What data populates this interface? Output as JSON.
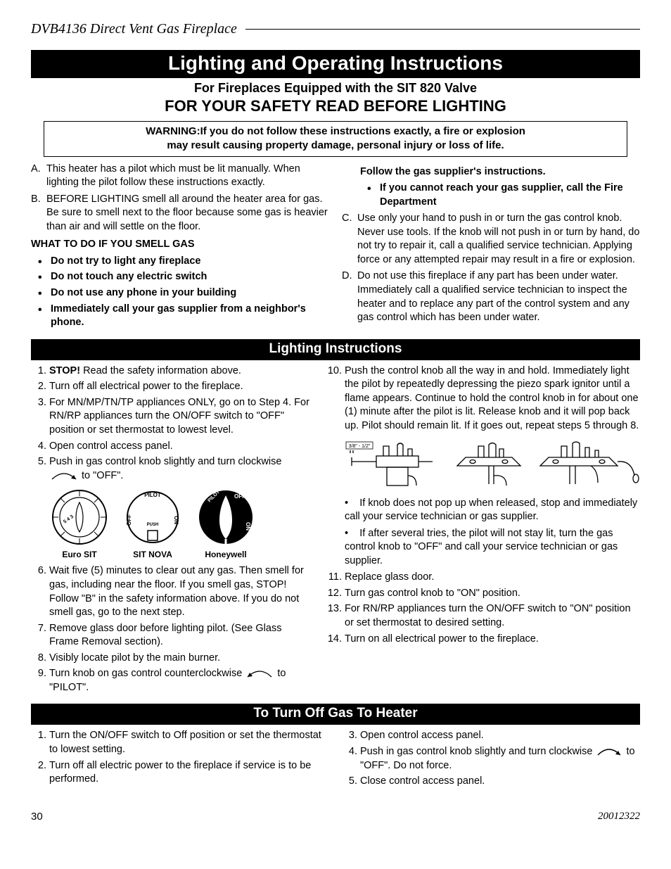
{
  "header": {
    "product_title": "DVB4136 Direct Vent Gas Fireplace"
  },
  "main": {
    "title": "Lighting and Operating Instructions",
    "subtitle1": "For Fireplaces Equipped with the SIT 820 Valve",
    "subtitle2": "FOR YOUR SAFETY READ BEFORE LIGHTING",
    "warning_line1": "WARNING:If you do not follow these instructions exactly, a fire or explosion",
    "warning_line2": "may result causing property damage, personal injury or loss of life."
  },
  "safety": {
    "left": {
      "items": [
        {
          "marker": "A.",
          "text": "This heater has a pilot which must be lit manually. When lighting the pilot follow these instructions exactly."
        },
        {
          "marker": "B.",
          "text": "BEFORE LIGHTING smell all around the heater area for gas. Be sure to smell next to the floor because some gas is heavier than air and will settle on the floor."
        }
      ],
      "smell_heading": "WHAT TO DO IF YOU SMELL GAS",
      "smell_bullets": [
        "Do not try to light any fireplace",
        "Do not touch any electric switch",
        "Do not use any phone in your building",
        "Immediately call your gas supplier from a neighbor's phone."
      ]
    },
    "right": {
      "indent_bold": "Follow the gas supplier's instructions.",
      "indent_bullet": "If you cannot reach your gas supplier, call the Fire Department",
      "items": [
        {
          "marker": "C.",
          "text": "Use only your hand to push in or turn the gas control knob. Never use tools. If the knob will not push in or turn by hand, do not try to repair it, call a qualified service technician. Applying force or any attempted repair may result in a fire or explosion."
        },
        {
          "marker": "D.",
          "text": "Do not use this fireplace if any part has been under water.  Immediately call a qualified service technician to inspect the heater and to replace any part of the control system and any gas control which has been under water."
        }
      ]
    }
  },
  "lighting": {
    "title": "Lighting Instructions",
    "left": [
      {
        "n": "1.",
        "html": "<span class=\"bold\">STOP!</span>  Read the safety information above."
      },
      {
        "n": "2.",
        "html": "Turn off all electrical power to the fireplace."
      },
      {
        "n": "3.",
        "html": "For MN/MP/TN/TP appliances ONLY, go on to Step 4. For RN/RP appliances turn the ON/OFF switch to \"OFF\" position or set thermostat to lowest level."
      },
      {
        "n": "4.",
        "html": "Open control access panel."
      },
      {
        "n": "5.",
        "html": "Push in gas control knob slightly and turn clockwise <svg class=\"arrow-svg\" width=\"42\" height=\"14\"><path d=\"M4 12 Q 21 -4 38 12\" stroke=\"#000\" fill=\"none\" stroke-width=\"1.3\"/><path d=\"M38 12 l-7 -1 l4 -5 z\" fill=\"#000\"/></svg> to \"OFF\"."
      }
    ],
    "knobs": [
      {
        "label": "Euro SIT"
      },
      {
        "label": "SIT NOVA"
      },
      {
        "label": "Honeywell"
      }
    ],
    "left2": [
      {
        "n": "6.",
        "html": "Wait five (5) minutes to clear out any gas. Then smell for gas, including near the floor. If you smell gas, STOP!  Follow \"B\" in the safety information above. If you do not smell gas, go to the next step."
      },
      {
        "n": "7.",
        "html": "Remove glass door before lighting pilot. (See Glass Frame Removal section)."
      },
      {
        "n": "8.",
        "html": "Visibly locate pilot by the main burner."
      },
      {
        "n": "9.",
        "html": "Turn knob on gas control counterclockwise <svg class=\"arrow-svg\" width=\"42\" height=\"14\"><path d=\"M4 12 Q 21 -4 38 12\" stroke=\"#000\" fill=\"none\" stroke-width=\"1.3\"/><path d=\"M4 12 l7 -1 l-4 -5 z\" fill=\"#000\"/></svg> to \"PILOT\"."
      }
    ],
    "right": [
      {
        "n": "10.",
        "html": "Push the control knob all the way in and hold. Immediately light the pilot by repeatedly depressing the piezo spark ignitor until a flame appears. Continue to hold the control knob in for about one (1) minute after the pilot is lit. Release knob and it will pop back up. Pilot should remain lit. If it goes out, repeat steps 5 through 8."
      }
    ],
    "diagram_label": "3/8\" - 1/2\"",
    "right_notes": [
      "If knob does not pop up when released, stop and immediately call your service technician or gas supplier.",
      "If after several tries, the pilot will not stay lit, turn the gas control knob to \"OFF\" and call your service technician or gas supplier."
    ],
    "right2": [
      {
        "n": "11.",
        "html": "Replace glass door."
      },
      {
        "n": "12.",
        "html": "Turn gas control knob to \"ON\" position."
      },
      {
        "n": "13.",
        "html": "For RN/RP appliances turn the ON/OFF switch to \"ON\" position or set thermostat to desired setting."
      },
      {
        "n": "14.",
        "html": "Turn on all electrical power to the fireplace."
      }
    ]
  },
  "turnoff": {
    "title": "To Turn Off Gas To Heater",
    "left": [
      {
        "n": "1.",
        "html": "Turn the ON/OFF switch to Off position or set the thermostat to lowest setting."
      },
      {
        "n": "2.",
        "html": "Turn off all electric power to the  fireplace if service is to be performed."
      }
    ],
    "right": [
      {
        "n": "3.",
        "html": "Open control access panel."
      },
      {
        "n": "4.",
        "html": "Push in gas control knob slightly and turn clockwise <svg class=\"arrow-svg\" width=\"40\" height=\"14\"><path d=\"M4 12 Q 20 -4 36 12\" stroke=\"#000\" fill=\"none\" stroke-width=\"1.3\"/><path d=\"M36 12 l-7 -1 l4 -5 z\" fill=\"#000\"/></svg> to \"OFF\".  Do not force."
      },
      {
        "n": "5.",
        "html": "Close control access panel."
      }
    ]
  },
  "footer": {
    "page": "30",
    "docnum": "20012322"
  },
  "colors": {
    "bg": "#ffffff",
    "text": "#000000",
    "bar_bg": "#000000",
    "bar_text": "#ffffff"
  }
}
